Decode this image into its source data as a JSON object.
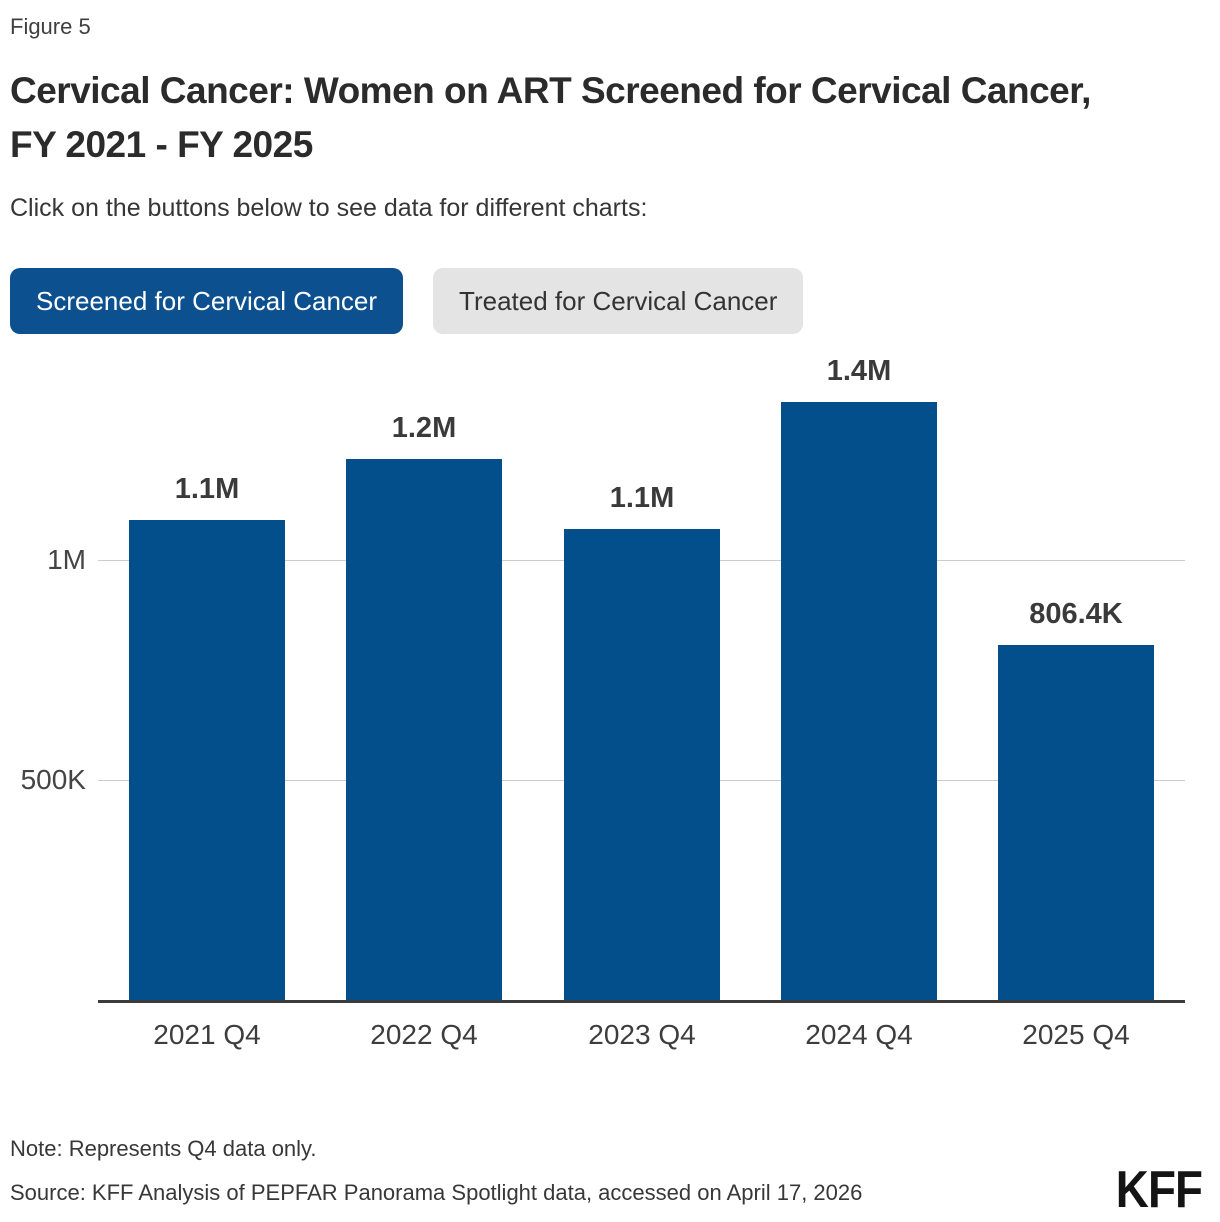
{
  "figure_label": "Figure 5",
  "title_line1": "Cervical Cancer: Women on ART Screened for Cervical Cancer,",
  "title_line2": "FY 2021 - FY 2025",
  "subtitle": "Click on the buttons below to see data for different charts:",
  "buttons": [
    {
      "label": "Screened for Cervical Cancer",
      "active": true
    },
    {
      "label": "Treated for Cervical Cancer",
      "active": false
    }
  ],
  "colors": {
    "bar_blue": "#034F8C",
    "button_blue": "#0D508F",
    "inactive_gray": "#E4E4E4",
    "gridline": "#CCCCCC",
    "axis": "#3B3B3B"
  },
  "chart_data": {
    "type": "bar",
    "categories": [
      "2021 Q4",
      "2022 Q4",
      "2023 Q4",
      "2024 Q4",
      "2025 Q4"
    ],
    "values": [
      1090000,
      1230000,
      1070000,
      1360000,
      806400
    ],
    "bar_labels": [
      "1.1M",
      "1.2M",
      "1.1M",
      "1.4M",
      "806.4K"
    ],
    "yticks": [
      {
        "value": 500000,
        "label": "500K"
      },
      {
        "value": 1000000,
        "label": "1M"
      }
    ],
    "ylim": [
      0,
      1500000
    ],
    "grid": true,
    "legend": "none",
    "bar_color": "#034F8C"
  },
  "footer": {
    "note": "Note: Represents Q4 data only.",
    "source": "Source: KFF Analysis of PEPFAR Panorama Spotlight data, accessed on April 17, 2026",
    "logo": "KFF"
  }
}
